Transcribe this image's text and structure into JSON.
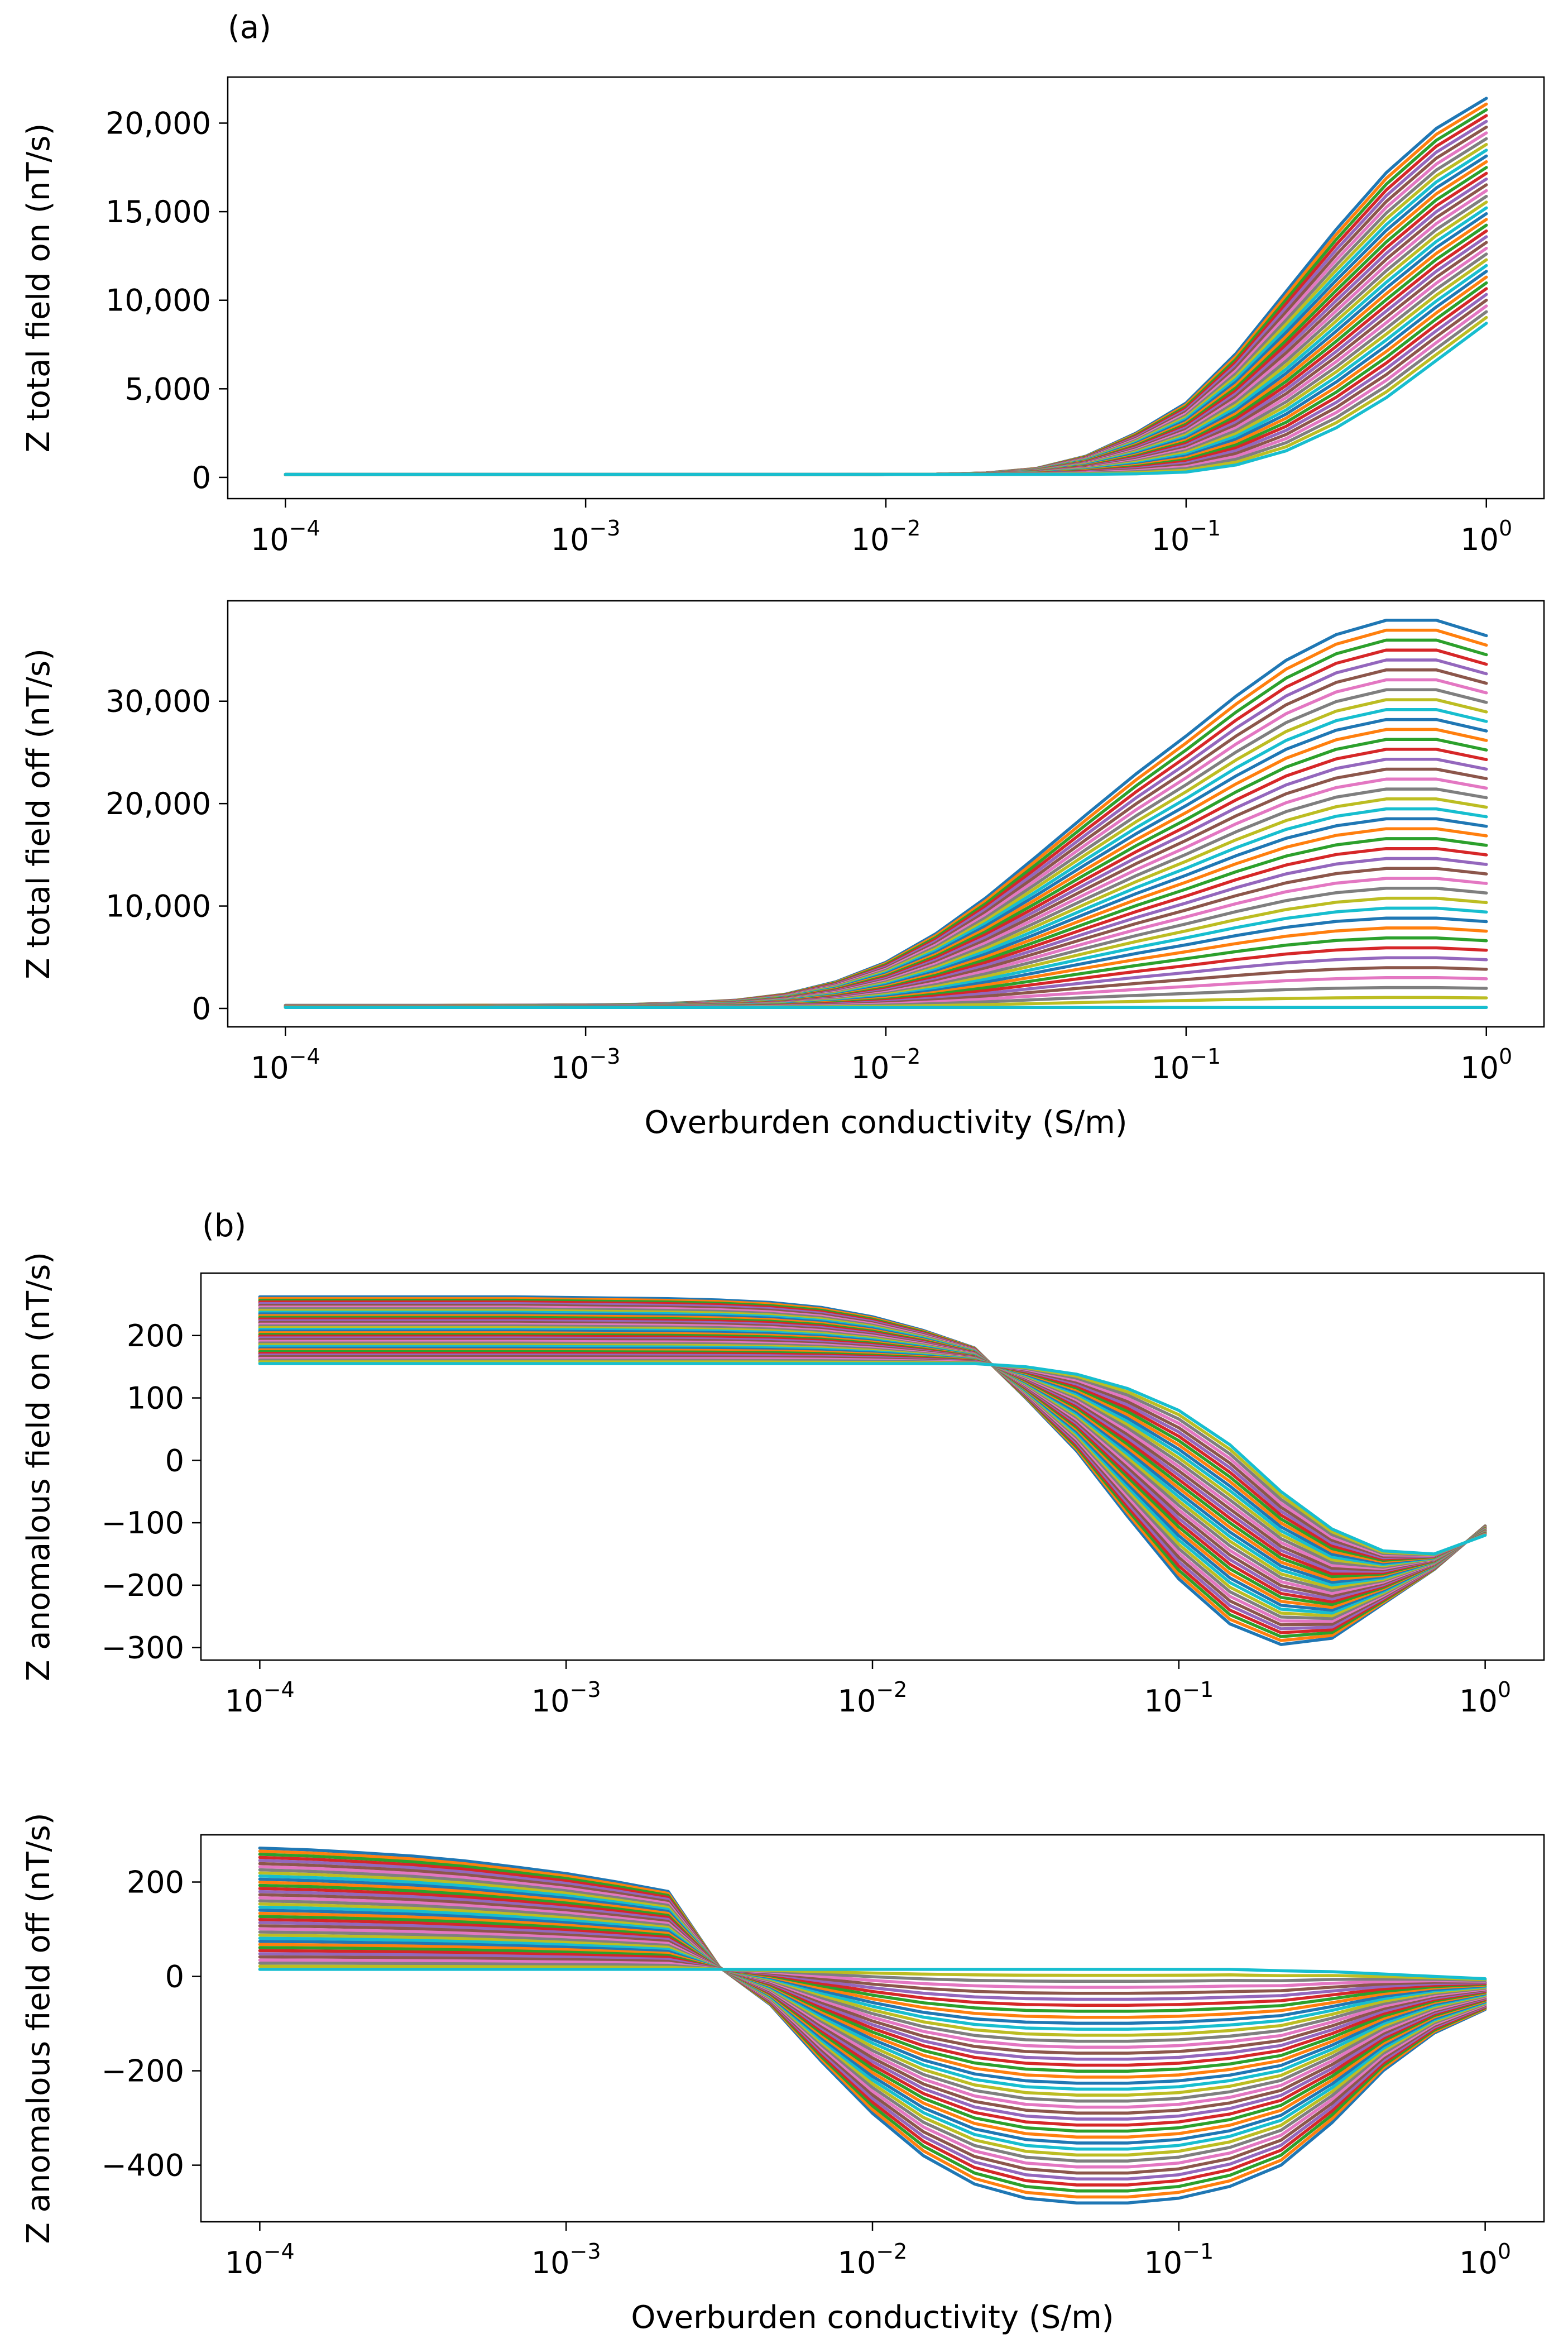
{
  "panel_labels": [
    "(a)",
    "(b)"
  ],
  "colors": [
    "#1f77b4",
    "#ff7f0e",
    "#2ca02c",
    "#d62728",
    "#9467bd",
    "#8c564b",
    "#e377c2",
    "#7f7f7f",
    "#bcbd22",
    "#17becf"
  ],
  "chart_data": [
    {
      "type": "line",
      "ylabel": "Z total field on (nT/s)",
      "xlabel": "",
      "x_scale": "log",
      "xlim": [
        0.0001,
        1
      ],
      "ylim": [
        -1200,
        22600
      ],
      "x_ticks": [
        {
          "base": "10",
          "exp": "−4",
          "value": 0.0001
        },
        {
          "base": "10",
          "exp": "−3",
          "value": 0.001
        },
        {
          "base": "10",
          "exp": "−2",
          "value": 0.01
        },
        {
          "base": "10",
          "exp": "−1",
          "value": 0.1
        },
        {
          "base": "10",
          "exp": "0",
          "value": 1
        }
      ],
      "y_ticks": [
        {
          "label": "0",
          "value": 0
        },
        {
          "label": "5,000",
          "value": 5000
        },
        {
          "label": "10,000",
          "value": 10000
        },
        {
          "label": "15,000",
          "value": 15000
        },
        {
          "label": "20,000",
          "value": 20000
        }
      ],
      "x": [
        0.0001,
        0.000147,
        0.000215,
        0.000316,
        0.000464,
        0.000681,
        0.001,
        0.001468,
        0.002154,
        0.003162,
        0.004642,
        0.006813,
        0.01,
        0.014678,
        0.021544,
        0.031623,
        0.046416,
        0.068129,
        0.1,
        0.14678,
        0.215443,
        0.316228,
        0.464159,
        0.681292,
        1
      ],
      "series_count": 40,
      "series_first": [
        150,
        150,
        150,
        150,
        150,
        150,
        150,
        150,
        150,
        150,
        150,
        150,
        160,
        180,
        250,
        500,
        1200,
        2500,
        4200,
        7000,
        10500,
        14000,
        17200,
        19700,
        21400
      ],
      "series_last": [
        170,
        170,
        170,
        170,
        170,
        170,
        170,
        170,
        170,
        170,
        170,
        170,
        170,
        170,
        170,
        170,
        170,
        200,
        300,
        700,
        1500,
        2800,
        4500,
        6600,
        8700
      ]
    },
    {
      "type": "line",
      "ylabel": "Z total field off (nT/s)",
      "xlabel": "Overburden conductivity (S/m)",
      "x_scale": "log",
      "xlim": [
        0.0001,
        1
      ],
      "ylim": [
        -1800,
        39800
      ],
      "x_ticks": [
        {
          "base": "10",
          "exp": "−4",
          "value": 0.0001
        },
        {
          "base": "10",
          "exp": "−3",
          "value": 0.001
        },
        {
          "base": "10",
          "exp": "−2",
          "value": 0.01
        },
        {
          "base": "10",
          "exp": "−1",
          "value": 0.1
        },
        {
          "base": "10",
          "exp": "0",
          "value": 1
        }
      ],
      "y_ticks": [
        {
          "label": "0",
          "value": 0
        },
        {
          "label": "10,000",
          "value": 10000
        },
        {
          "label": "20,000",
          "value": 20000
        },
        {
          "label": "30,000",
          "value": 30000
        }
      ],
      "x": [
        0.0001,
        0.000147,
        0.000215,
        0.000316,
        0.000464,
        0.000681,
        0.001,
        0.001468,
        0.002154,
        0.003162,
        0.004642,
        0.006813,
        0.01,
        0.014678,
        0.021544,
        0.031623,
        0.046416,
        0.068129,
        0.1,
        0.14678,
        0.215443,
        0.316228,
        0.464159,
        0.681292,
        1
      ],
      "series_count": 40,
      "series_first": [
        300,
        300,
        300,
        300,
        310,
        320,
        350,
        400,
        550,
        800,
        1400,
        2600,
        4500,
        7300,
        10800,
        14800,
        18900,
        22900,
        26600,
        30500,
        34000,
        36500,
        37900,
        37900,
        36400
      ],
      "series_last": [
        100,
        100,
        100,
        100,
        100,
        100,
        100,
        100,
        100,
        100,
        100,
        100,
        100,
        100,
        100,
        100,
        100,
        100,
        100,
        100,
        100,
        100,
        100,
        100,
        100
      ]
    },
    {
      "type": "line",
      "ylabel": "Z anomalous field on (nT/s)",
      "xlabel": "",
      "x_scale": "log",
      "xlim": [
        0.0001,
        1
      ],
      "ylim": [
        -320,
        300
      ],
      "x_ticks": [
        {
          "base": "10",
          "exp": "−4",
          "value": 0.0001
        },
        {
          "base": "10",
          "exp": "−3",
          "value": 0.001
        },
        {
          "base": "10",
          "exp": "−2",
          "value": 0.01
        },
        {
          "base": "10",
          "exp": "−1",
          "value": 0.1
        },
        {
          "base": "10",
          "exp": "0",
          "value": 1
        }
      ],
      "y_ticks": [
        {
          "label": "−300",
          "value": -300
        },
        {
          "label": "−200",
          "value": -200
        },
        {
          "label": "−100",
          "value": -100
        },
        {
          "label": "0",
          "value": 0
        },
        {
          "label": "100",
          "value": 100
        },
        {
          "label": "200",
          "value": 200
        }
      ],
      "x": [
        0.0001,
        0.000147,
        0.000215,
        0.000316,
        0.000464,
        0.000681,
        0.001,
        0.001468,
        0.002154,
        0.003162,
        0.004642,
        0.006813,
        0.01,
        0.014678,
        0.021544,
        0.031623,
        0.046416,
        0.068129,
        0.1,
        0.14678,
        0.215443,
        0.316228,
        0.464159,
        0.681292,
        1
      ],
      "series_count": 40,
      "series_first": [
        262,
        262,
        262,
        262,
        262,
        262,
        261,
        260,
        259,
        257,
        253,
        245,
        230,
        208,
        180,
        100,
        15,
        -90,
        -190,
        -262,
        -295,
        -285,
        -230,
        -175,
        -105
      ],
      "series_last": [
        155,
        155,
        155,
        155,
        155,
        155,
        155,
        155,
        155,
        155,
        155,
        155,
        155,
        155,
        155,
        150,
        138,
        115,
        80,
        25,
        -50,
        -110,
        -145,
        -150,
        -120
      ]
    },
    {
      "type": "line",
      "ylabel": "Z anomalous field off (nT/s)",
      "xlabel": "Overburden conductivity (S/m)",
      "x_scale": "log",
      "xlim": [
        0.0001,
        1
      ],
      "ylim": [
        -520,
        300
      ],
      "x_ticks": [
        {
          "base": "10",
          "exp": "−4",
          "value": 0.0001
        },
        {
          "base": "10",
          "exp": "−3",
          "value": 0.001
        },
        {
          "base": "10",
          "exp": "−2",
          "value": 0.01
        },
        {
          "base": "10",
          "exp": "−1",
          "value": 0.1
        },
        {
          "base": "10",
          "exp": "0",
          "value": 1
        }
      ],
      "y_ticks": [
        {
          "label": "−400",
          "value": -400
        },
        {
          "label": "−200",
          "value": -200
        },
        {
          "label": "0",
          "value": 0
        },
        {
          "label": "200",
          "value": 200
        }
      ],
      "x": [
        0.0001,
        0.000147,
        0.000215,
        0.000316,
        0.000464,
        0.000681,
        0.001,
        0.001468,
        0.002154,
        0.003162,
        0.004642,
        0.006813,
        0.01,
        0.014678,
        0.021544,
        0.031623,
        0.046416,
        0.068129,
        0.1,
        0.14678,
        0.215443,
        0.316228,
        0.464159,
        0.681292,
        1
      ],
      "series_count": 40,
      "series_first": [
        272,
        268,
        262,
        255,
        245,
        232,
        218,
        200,
        180,
        20,
        -60,
        -180,
        -290,
        -380,
        -440,
        -470,
        -480,
        -480,
        -470,
        -445,
        -400,
        -310,
        -200,
        -120,
        -70
      ],
      "series_last": [
        15,
        15,
        15,
        15,
        15,
        15,
        15,
        15,
        15,
        15,
        15,
        15,
        15,
        15,
        15,
        15,
        15,
        15,
        15,
        15,
        12,
        10,
        5,
        0,
        -5
      ]
    }
  ]
}
